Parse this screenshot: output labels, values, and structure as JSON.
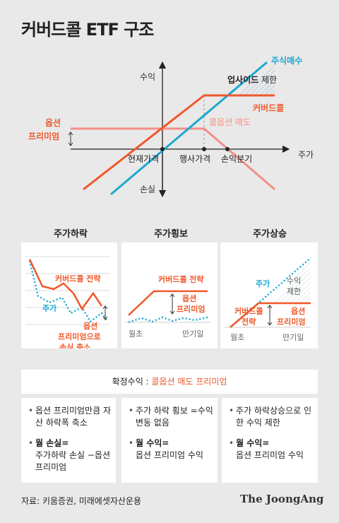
{
  "title": "커버드콜 ETF 구조",
  "main": {
    "y_label_top": "수익",
    "y_label_bottom": "손실",
    "x_label": "주가",
    "stock_buy": "주식매수",
    "upside_limit_bold": "업사이드",
    "upside_limit_rest": " 제한",
    "covered_call": "커버드콜",
    "call_sell": "콜옵션 매도",
    "premium_line1": "옵션",
    "premium_line2": "프리미엄",
    "tick_current": "현재가격",
    "tick_strike": "행사가격",
    "tick_breakeven": "손익분기"
  },
  "panels": [
    {
      "title": "주가하락",
      "label_cc": "커버드콜 전략",
      "label_stock": "주가",
      "note_line1": "옵션",
      "note_line2": "프리미엄으로",
      "note_line3": "손실 축소"
    },
    {
      "title": "주가횡보",
      "label_cc": "커버드콜 전략",
      "premium_line1": "옵션",
      "premium_line2": "프리미엄",
      "x_start": "월초",
      "x_end": "만기일"
    },
    {
      "title": "주가상승",
      "label_stock": "주가",
      "limit_line1": "수익",
      "limit_line2": "제한",
      "label_cc_line1": "커버드콜",
      "label_cc_line2": "전략",
      "premium_line1": "옵션",
      "premium_line2": "프리미엄",
      "x_start": "월초",
      "x_end": "만기일"
    }
  ],
  "result": {
    "prefix": "확정수익 : ",
    "value": "콜옵션 매도 프리미엄"
  },
  "boxes": [
    {
      "item1": "옵션 프리미엄만큼 자산 하락폭 축소",
      "item2_bold": "월 손실=",
      "item2_rest": "주가하락 손실 −옵션 프리미엄"
    },
    {
      "item1": "주가 하락 횡보 =수익 변동 없음",
      "item2_bold": "월 수익=",
      "item2_rest": "옵션 프리미엄 수익"
    },
    {
      "item1": "주가 하락상승으로 인한 수익 제한",
      "item2_bold": "월 수익=",
      "item2_rest": "옵션 프리미엄 수익"
    }
  ],
  "footer": {
    "source": "자료: 키움증권, 미래에셋자산운용",
    "logo": "The JoongAng"
  },
  "colors": {
    "orange": "#f0582a",
    "cyan": "#1aa8d0",
    "pink": "#f29088",
    "dark": "#222222"
  }
}
